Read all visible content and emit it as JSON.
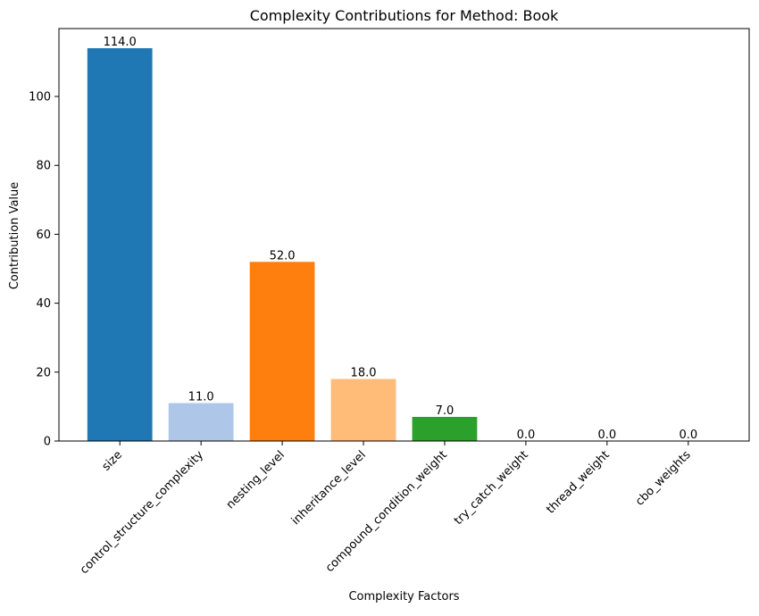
{
  "chart_data": {
    "type": "bar",
    "title": "Complexity Contributions for Method: Book",
    "xlabel": "Complexity Factors",
    "ylabel": "Contribution Value",
    "categories": [
      "size",
      "control_structure_complexity",
      "nesting_level",
      "inheritance_level",
      "compound_condition_weight",
      "try_catch_weight",
      "thread_weight",
      "cbo_weights"
    ],
    "values": [
      114,
      11,
      52,
      18,
      7,
      0,
      0,
      0
    ],
    "value_labels": [
      "114.0",
      "11.0",
      "52.0",
      "18.0",
      "7.0",
      "0.0",
      "0.0",
      "0.0"
    ],
    "colors": [
      "#1f77b4",
      "#aec7e8",
      "#ff7f0e",
      "#ffbb78",
      "#2ca02c",
      "#98df8a",
      "#d62728",
      "#ff9896"
    ],
    "ylim": [
      0,
      119.7
    ],
    "yticks": [
      0,
      20,
      40,
      60,
      80,
      100
    ],
    "ytick_labels": [
      "0",
      "20",
      "40",
      "60",
      "80",
      "100"
    ],
    "grid": false,
    "legend": "none"
  }
}
